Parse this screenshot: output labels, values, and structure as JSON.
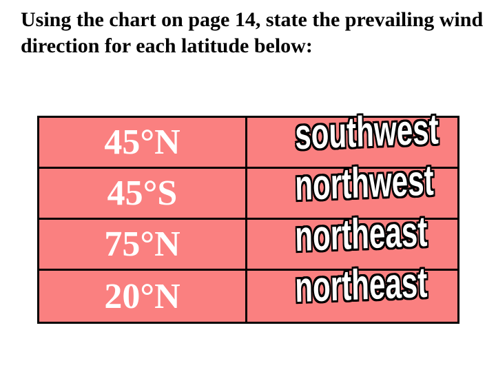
{
  "slide": {
    "title": "Using the chart on page 14, state the prevailing wind direction for each latitude below:"
  },
  "table": {
    "rows": [
      {
        "latitude": "45°N",
        "wind_direction": "southwest"
      },
      {
        "latitude": "45°S",
        "wind_direction": "northwest"
      },
      {
        "latitude": "75°N",
        "wind_direction": "northeast"
      },
      {
        "latitude": "20°N",
        "wind_direction": "northeast"
      }
    ]
  },
  "colors": {
    "background": "#FFFFFF",
    "title_text": "#000000",
    "cell_fill": "#FA8080",
    "table_border": "#000000",
    "latitude_text": "#FFFFFF",
    "answer_text_fill": "#FFFFFF",
    "answer_text_outline": "#000000"
  }
}
